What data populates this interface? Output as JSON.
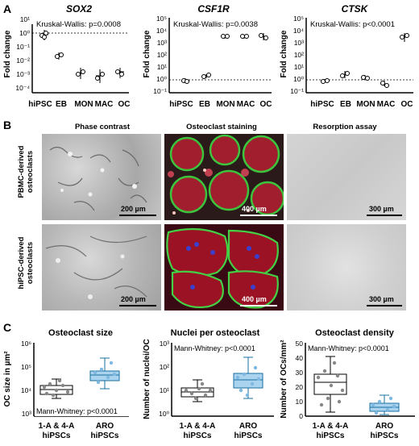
{
  "panel_labels": {
    "a": "A",
    "b": "B",
    "c": "C"
  },
  "panel_a": {
    "charts": [
      {
        "title": "SOX2",
        "stat": "Kruskal-Wallis: p=0.0008",
        "ylabel": "Fold change",
        "yticks": [
          "10¹",
          "10⁰",
          "10⁻¹",
          "10⁻²",
          "10⁻³",
          "10⁻⁴"
        ],
        "categories": [
          "hiPSC",
          "EB",
          "MON",
          "MAC",
          "OC"
        ]
      },
      {
        "title": "CSF1R",
        "stat": "Kruskal-Wallis: p=0.0038",
        "ylabel": "Fold change",
        "yticks": [
          "10⁵",
          "10⁴",
          "10³",
          "10²",
          "10¹",
          "10⁰",
          "10⁻¹"
        ],
        "categories": [
          "hiPSC",
          "EB",
          "MON",
          "MAC",
          "OC"
        ]
      },
      {
        "title": "CTSK",
        "stat": "Kruskal-Wallis: p<0.0001",
        "ylabel": "Fold change",
        "yticks": [
          "10⁵",
          "10⁴",
          "10³",
          "10²",
          "10¹",
          "10⁰",
          "10⁻¹"
        ],
        "categories": [
          "hiPSC",
          "EB",
          "MON",
          "MAC",
          "OC"
        ]
      }
    ]
  },
  "panel_b": {
    "columns": [
      "Phase contrast",
      "Osteoclast staining",
      "Resorption assay"
    ],
    "rows": [
      "PBMC-derived osteoclasts",
      "hiPSC-derived osteoclasts"
    ],
    "scalebars": [
      [
        "200 µm",
        "400 µm",
        "300 µm"
      ],
      [
        "200 µm",
        "400 µm",
        "300 µm"
      ]
    ]
  },
  "panel_c": {
    "charts": [
      {
        "title": "Osteoclast size",
        "ylabel": "OC size in µm²",
        "stat": "Mann-Whitney: p<0.0001",
        "yticks": [
          "10⁶",
          "10⁵",
          "10⁴",
          "10³"
        ],
        "groups": [
          "1-A & 4-A\nhiPSCs",
          "ARO\nhiPSCs"
        ]
      },
      {
        "title": "Nuclei per osteoclast",
        "ylabel": "Number of nuclei/OC",
        "stat": "Mann-Whitney: p<0.0001",
        "yticks": [
          "10³",
          "10²",
          "10¹",
          "10⁰"
        ],
        "groups": [
          "1-A & 4-A\nhiPSCs",
          "ARO\nhiPSCs"
        ]
      },
      {
        "title": "Osteoclast density",
        "ylabel": "Number of OCs/mm²",
        "stat": "Mann-Whitney: p<0.0001",
        "yticks": [
          "50",
          "40",
          "30",
          "20",
          "10",
          "0"
        ],
        "groups": [
          "1-A & 4-A\nhiPSCs",
          "ARO\nhiPSCs"
        ]
      }
    ]
  },
  "chart_data": [
    {
      "type": "scatter",
      "title": "SOX2",
      "ylabel": "Fold change",
      "log_y": true,
      "ylim": [
        0.0001,
        10
      ],
      "reference_line": 1,
      "categories": [
        "hiPSC",
        "EB",
        "MON",
        "MAC",
        "OC"
      ],
      "series": [
        {
          "values": [
            [
              0.7,
              1.2,
              1.6
            ],
            [
              0.03,
              0.05,
              0.04
            ],
            [
              0.002,
              0.001,
              0.003
            ],
            [
              0.002,
              0.0006,
              0.001
            ],
            [
              0.002,
              0.001,
              0.002
            ]
          ]
        }
      ]
    },
    {
      "type": "scatter",
      "title": "CSF1R",
      "ylabel": "Fold change",
      "log_y": true,
      "ylim": [
        0.1,
        100000
      ],
      "reference_line": 1,
      "categories": [
        "hiPSC",
        "EB",
        "MON",
        "MAC",
        "OC"
      ],
      "series": [
        {
          "values": [
            [
              0.8,
              1,
              1.2
            ],
            [
              2,
              3,
              3.5
            ],
            [
              5000,
              5500,
              6000
            ],
            [
              5000,
              5200,
              6000
            ],
            [
              4000,
              6000,
              8000
            ]
          ]
        }
      ]
    },
    {
      "type": "scatter",
      "title": "CTSK",
      "ylabel": "Fold change",
      "log_y": true,
      "ylim": [
        0.1,
        100000
      ],
      "reference_line": 1,
      "categories": [
        "hiPSC",
        "EB",
        "MON",
        "MAC",
        "OC"
      ],
      "series": [
        {
          "values": [
            [
              0.8,
              1,
              1.1
            ],
            [
              2,
              3,
              4
            ],
            [
              1.5,
              2,
              2.2
            ],
            [
              0.4,
              0.6,
              0.7
            ],
            [
              3000,
              4000,
              6000
            ]
          ]
        }
      ]
    },
    {
      "type": "box",
      "title": "Osteoclast size",
      "ylabel": "OC size in µm²",
      "log_y": true,
      "ylim": [
        1000,
        1000000
      ],
      "categories": [
        "1-A & 4-A hiPSCs",
        "ARO hiPSCs"
      ],
      "boxes": [
        {
          "min": 9000,
          "q1": 15000,
          "median": 22000,
          "q3": 38000,
          "max": 75000
        },
        {
          "min": 28000,
          "q1": 60000,
          "median": 90000,
          "q3": 140000,
          "max": 480000
        }
      ]
    },
    {
      "type": "box",
      "title": "Nuclei per osteoclast",
      "ylabel": "Number of nuclei/OC",
      "log_y": true,
      "ylim": [
        1,
        1000
      ],
      "categories": [
        "1-A & 4-A hiPSCs",
        "ARO hiPSCs"
      ],
      "boxes": [
        {
          "min": 4,
          "q1": 8,
          "median": 11,
          "q3": 16,
          "max": 35
        },
        {
          "min": 8,
          "q1": 20,
          "median": 38,
          "q3": 70,
          "max": 300
        }
      ]
    },
    {
      "type": "box",
      "title": "Osteoclast density",
      "ylabel": "Number of OCs/mm²",
      "log_y": false,
      "ylim": [
        0,
        50
      ],
      "categories": [
        "1-A & 4-A hiPSCs",
        "ARO hiPSCs"
      ],
      "boxes": [
        {
          "min": 3,
          "q1": 15,
          "median": 23,
          "q3": 29,
          "max": 41
        },
        {
          "min": 1,
          "q1": 5,
          "median": 8,
          "q3": 11,
          "max": 15
        }
      ]
    }
  ]
}
